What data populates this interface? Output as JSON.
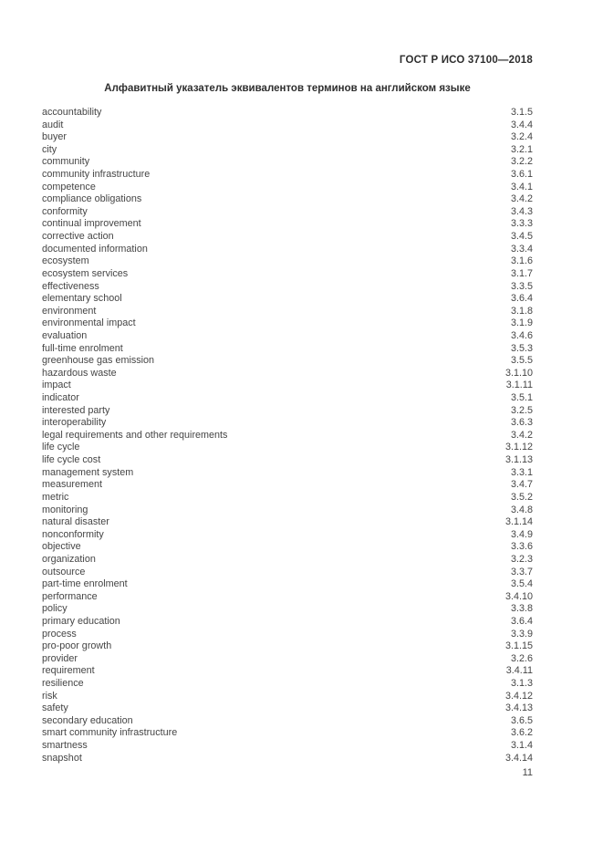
{
  "header": {
    "doc_code": "ГОСТ Р ИСО 37100—2018"
  },
  "title": "Алфавитный указатель эквивалентов терминов на английском языке",
  "index": {
    "entries": [
      {
        "term": "accountability",
        "ref": "3.1.5"
      },
      {
        "term": "audit",
        "ref": "3.4.4"
      },
      {
        "term": "buyer",
        "ref": "3.2.4"
      },
      {
        "term": "city",
        "ref": "3.2.1"
      },
      {
        "term": "community",
        "ref": "3.2.2"
      },
      {
        "term": "community infrastructure",
        "ref": "3.6.1"
      },
      {
        "term": "competence",
        "ref": "3.4.1"
      },
      {
        "term": "compliance obligations",
        "ref": "3.4.2"
      },
      {
        "term": "conformity",
        "ref": "3.4.3"
      },
      {
        "term": "continual improvement",
        "ref": "3.3.3"
      },
      {
        "term": "corrective action",
        "ref": "3.4.5"
      },
      {
        "term": "documented information",
        "ref": "3.3.4"
      },
      {
        "term": "ecosystem",
        "ref": "3.1.6"
      },
      {
        "term": "ecosystem services",
        "ref": "3.1.7"
      },
      {
        "term": "effectiveness",
        "ref": "3.3.5"
      },
      {
        "term": "elementary school",
        "ref": "3.6.4"
      },
      {
        "term": "environment",
        "ref": "3.1.8"
      },
      {
        "term": "environmental impact",
        "ref": "3.1.9"
      },
      {
        "term": "evaluation",
        "ref": "3.4.6"
      },
      {
        "term": "full-time enrolment",
        "ref": "3.5.3"
      },
      {
        "term": "greenhouse gas emission",
        "ref": "3.5.5"
      },
      {
        "term": "hazardous waste",
        "ref": "3.1.10"
      },
      {
        "term": "impact",
        "ref": "3.1.11"
      },
      {
        "term": "indicator",
        "ref": "3.5.1"
      },
      {
        "term": "interested party",
        "ref": "3.2.5"
      },
      {
        "term": "interoperability",
        "ref": "3.6.3"
      },
      {
        "term": "legal requirements and other requirements",
        "ref": "3.4.2"
      },
      {
        "term": "life cycle",
        "ref": "3.1.12"
      },
      {
        "term": "life cycle cost",
        "ref": "3.1.13"
      },
      {
        "term": "management system",
        "ref": "3.3.1"
      },
      {
        "term": "measurement",
        "ref": "3.4.7"
      },
      {
        "term": "metric",
        "ref": "3.5.2"
      },
      {
        "term": "monitoring",
        "ref": "3.4.8"
      },
      {
        "term": "natural disaster",
        "ref": "3.1.14"
      },
      {
        "term": "nonconformity",
        "ref": "3.4.9"
      },
      {
        "term": "objective",
        "ref": "3.3.6"
      },
      {
        "term": "organization",
        "ref": "3.2.3"
      },
      {
        "term": "outsource",
        "ref": "3.3.7"
      },
      {
        "term": "part-time enrolment",
        "ref": "3.5.4"
      },
      {
        "term": "performance",
        "ref": "3.4.10"
      },
      {
        "term": "policy",
        "ref": "3.3.8"
      },
      {
        "term": "primary education",
        "ref": "3.6.4"
      },
      {
        "term": "process",
        "ref": "3.3.9"
      },
      {
        "term": "pro-poor growth",
        "ref": "3.1.15"
      },
      {
        "term": "provider",
        "ref": "3.2.6"
      },
      {
        "term": "requirement",
        "ref": "3.4.11"
      },
      {
        "term": "resilience",
        "ref": "3.1.3"
      },
      {
        "term": "risk",
        "ref": "3.4.12"
      },
      {
        "term": "safety",
        "ref": "3.4.13"
      },
      {
        "term": "secondary education",
        "ref": "3.6.5"
      },
      {
        "term": "smart community infrastructure",
        "ref": "3.6.2"
      },
      {
        "term": "smartness",
        "ref": "3.1.4"
      },
      {
        "term": "snapshot",
        "ref": "3.4.14"
      }
    ]
  },
  "footer": {
    "page_number": "11"
  }
}
